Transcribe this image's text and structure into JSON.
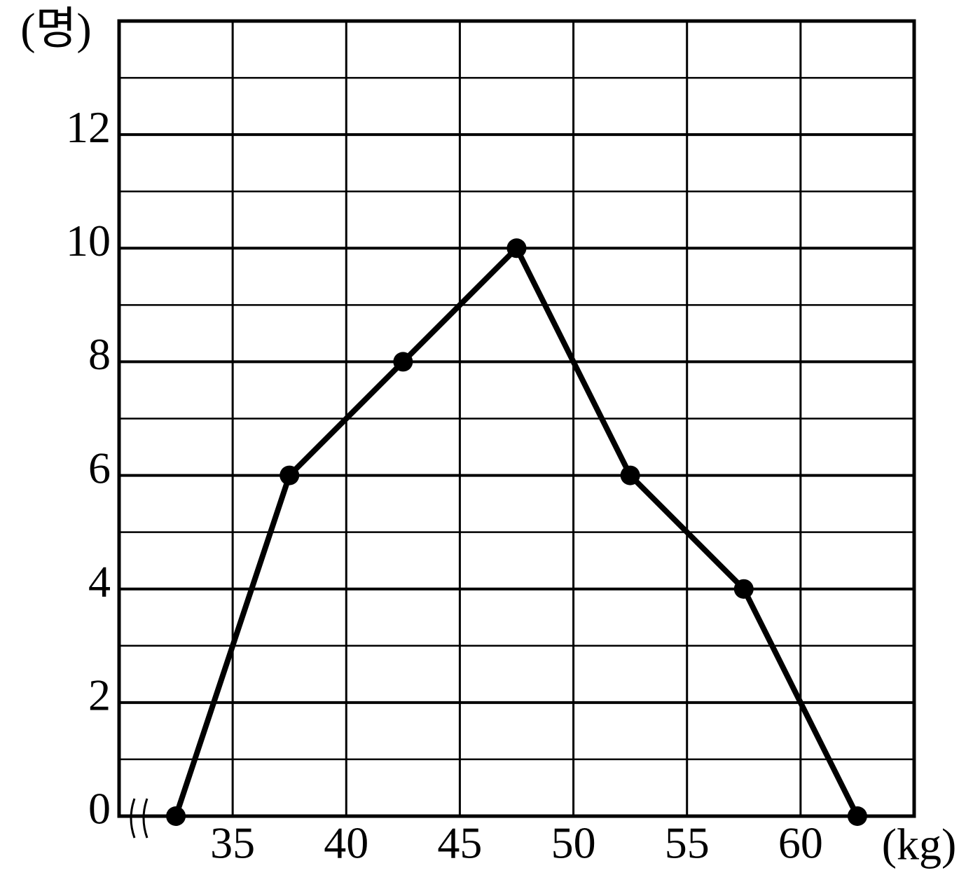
{
  "chart_data": {
    "type": "line",
    "y_label": "(명)",
    "x_label": "(kg)",
    "x": [
      32.5,
      37.5,
      42.5,
      47.5,
      52.5,
      57.5,
      62.5
    ],
    "values": [
      0,
      6,
      8,
      10,
      6,
      4,
      0
    ],
    "color": "#000000",
    "xlim": [
      30,
      65
    ],
    "xticks": [
      35,
      40,
      45,
      50,
      55,
      60
    ],
    "ylim": [
      0,
      14
    ],
    "yticks": [
      0,
      2,
      4,
      6,
      8,
      10,
      12
    ],
    "grid": true
  }
}
